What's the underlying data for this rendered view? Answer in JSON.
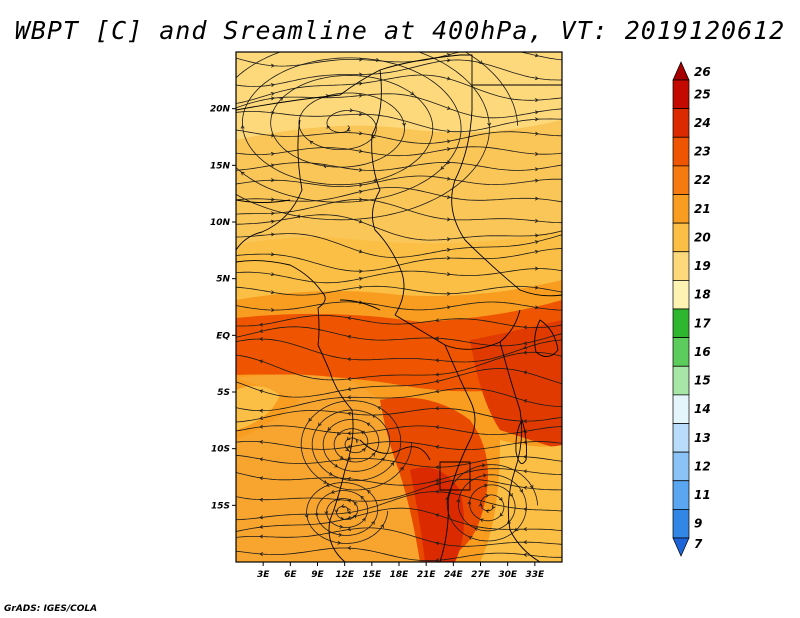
{
  "title": "WBPT [C] and Sreamline at 400hPa, VT: 2019120612",
  "credit": "GrADS: IGES/COLA",
  "map": {
    "lon_range": [
      0,
      36
    ],
    "lat_range": [
      -20,
      25
    ],
    "lat_ticks": [
      {
        "value": 20,
        "label": "20N"
      },
      {
        "value": 15,
        "label": "15N"
      },
      {
        "value": 10,
        "label": "10N"
      },
      {
        "value": 5,
        "label": "5N"
      },
      {
        "value": 0,
        "label": "EQ"
      },
      {
        "value": -5,
        "label": "5S"
      },
      {
        "value": -10,
        "label": "10S"
      },
      {
        "value": -15,
        "label": "15S"
      }
    ],
    "lon_ticks": [
      {
        "value": 3,
        "label": "3E"
      },
      {
        "value": 6,
        "label": "6E"
      },
      {
        "value": 9,
        "label": "9E"
      },
      {
        "value": 12,
        "label": "12E"
      },
      {
        "value": 15,
        "label": "15E"
      },
      {
        "value": 18,
        "label": "18E"
      },
      {
        "value": 21,
        "label": "21E"
      },
      {
        "value": 24,
        "label": "24E"
      },
      {
        "value": 27,
        "label": "27E"
      },
      {
        "value": 30,
        "label": "30E"
      },
      {
        "value": 33,
        "label": "33E"
      }
    ],
    "vortices": [
      {
        "name": "anticyclone-north",
        "lon": 12,
        "lat": 18.5
      },
      {
        "name": "cyclone-central",
        "lon": 13,
        "lat": -9.5
      },
      {
        "name": "cyclone-southwest",
        "lon": 12,
        "lat": -15.5
      },
      {
        "name": "cyclone-southeast",
        "lon": 28,
        "lat": -15
      }
    ]
  },
  "colorbar": {
    "levels": [
      {
        "label": "26",
        "color": "#a50000"
      },
      {
        "label": "25",
        "color": "#c40a00"
      },
      {
        "label": "24",
        "color": "#dc2a00"
      },
      {
        "label": "23",
        "color": "#ef5500"
      },
      {
        "label": "22",
        "color": "#f57a10"
      },
      {
        "label": "21",
        "color": "#f89d20"
      },
      {
        "label": "20",
        "color": "#fbbf45"
      },
      {
        "label": "19",
        "color": "#fdd97b"
      },
      {
        "label": "18",
        "color": "#fff3b3"
      },
      {
        "label": "17",
        "color": "#2fb62f"
      },
      {
        "label": "16",
        "color": "#5ccc5c"
      },
      {
        "label": "15",
        "color": "#a8e6a8"
      },
      {
        "label": "14",
        "color": "#e4f6fc"
      },
      {
        "label": "13",
        "color": "#b8dcfa"
      },
      {
        "label": "12",
        "color": "#8cc3f6"
      },
      {
        "label": "11",
        "color": "#5aa6f0"
      },
      {
        "label": "9",
        "color": "#3286e6"
      },
      {
        "label": "7",
        "color": "#1c64d8"
      }
    ]
  }
}
